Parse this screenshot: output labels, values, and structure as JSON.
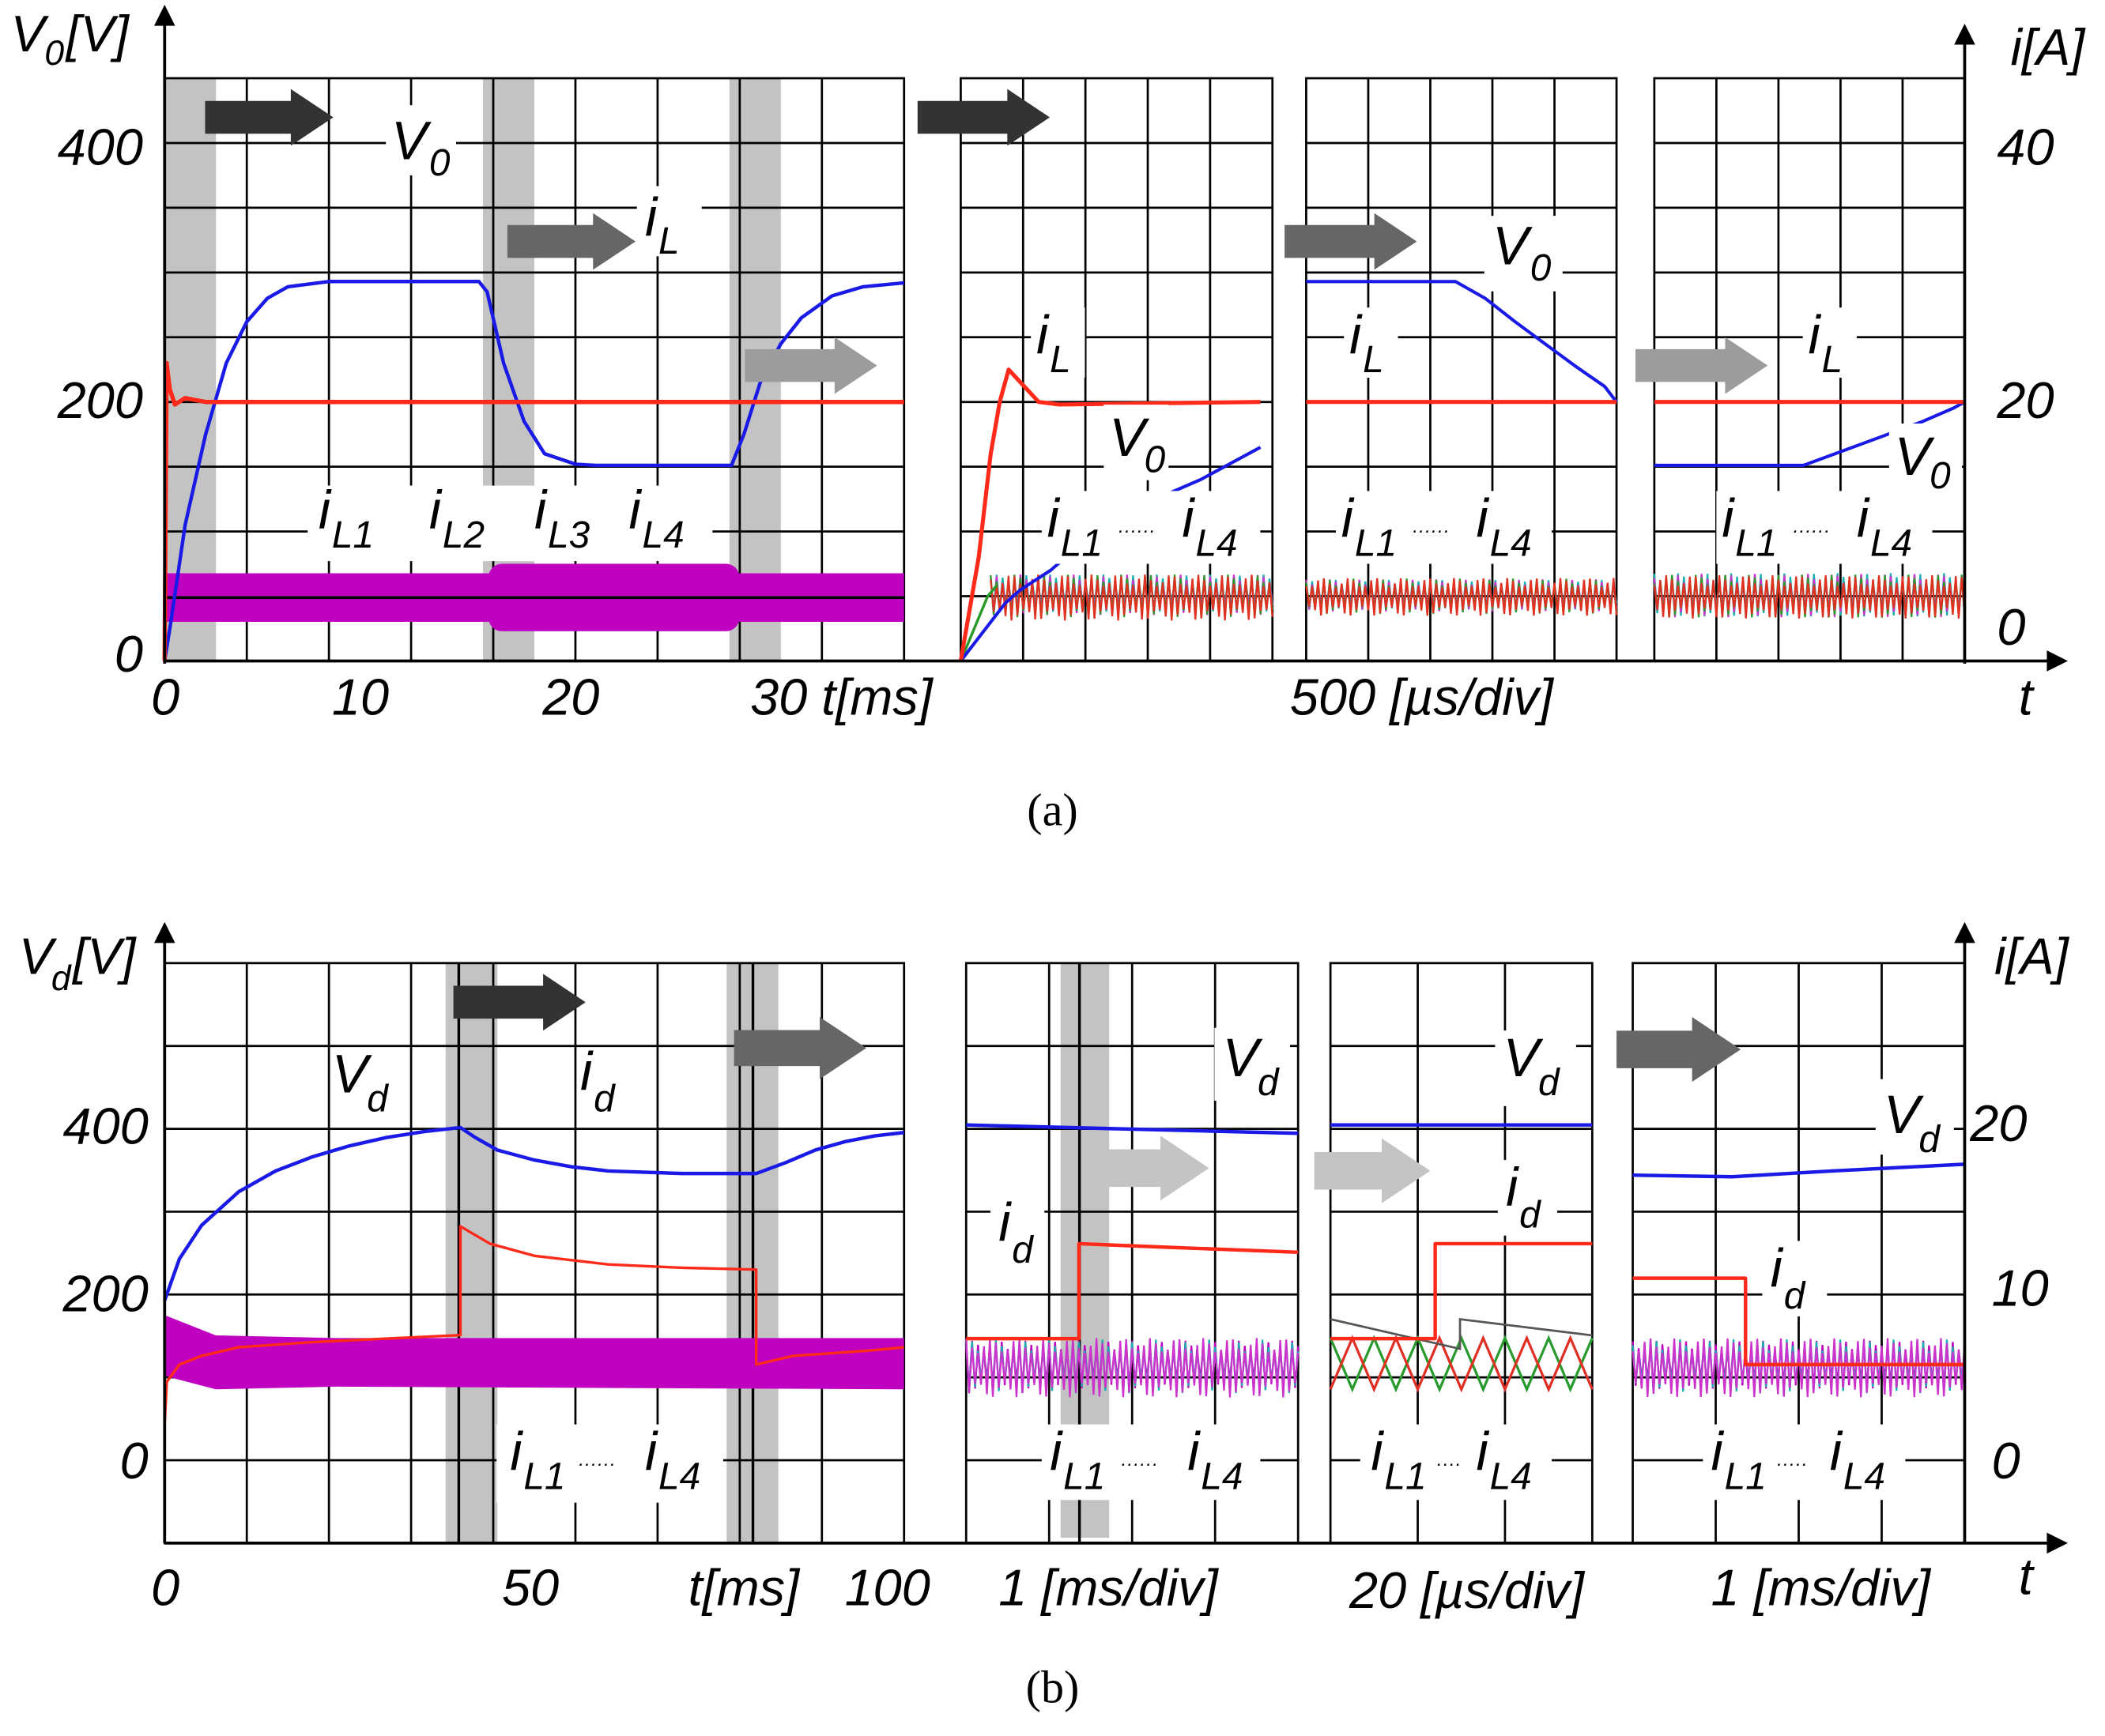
{
  "colors": {
    "voltage": "#1a1ae6",
    "current": "#ff2a1a",
    "phase": "#c000c0",
    "phase_a": "#19b0b0",
    "phase_b": "#cc33cc",
    "phase_c": "#2a9a2a",
    "phase_d": "#e03020",
    "envelope": "#555555",
    "grid": "#000000",
    "shade": "#c3c3c3",
    "arrow_dark": "#333333",
    "arrow_mid": "#666666",
    "arrow_light": "#9c9c9c",
    "arrow_pale": "#c4c4c4"
  },
  "chart_data": [
    {
      "id": "a",
      "type": "line",
      "caption": "(a)",
      "ylabel_left": "V0[V]",
      "ylabel_right": "i[A]",
      "yticks_left": [
        "0",
        "200",
        "400"
      ],
      "yticks_right": [
        "0",
        "20",
        "40"
      ],
      "ylim_left": [
        0,
        450
      ],
      "ylim_right": [
        0,
        45
      ],
      "xlabel": "t",
      "grid": true,
      "panels": [
        {
          "name": "overview",
          "xlim": [
            0,
            36
          ],
          "xticks": [
            "0",
            "10",
            "20",
            "30 t[ms]"
          ],
          "shaded_windows_ms": [
            [
              0,
              2.5
            ],
            [
              15.5,
              18
            ],
            [
              27.5,
              30
            ]
          ],
          "series": [
            {
              "name": "V0",
              "points": [
                [
                  0,
                  0
                ],
                [
                  0.3,
                  30
                ],
                [
                  1,
                  105
                ],
                [
                  2,
                  175
                ],
                [
                  3,
                  230
                ],
                [
                  4,
                  262
                ],
                [
                  5,
                  280
                ],
                [
                  6,
                  289
                ],
                [
                  8,
                  293
                ],
                [
                  15.3,
                  293
                ],
                [
                  15.7,
                  285
                ],
                [
                  16.5,
                  230
                ],
                [
                  17.5,
                  185
                ],
                [
                  18.5,
                  160
                ],
                [
                  20,
                  152
                ],
                [
                  21,
                  151
                ],
                [
                  27.6,
                  151
                ],
                [
                  28.2,
                  175
                ],
                [
                  29,
                  215
                ],
                [
                  30,
                  245
                ],
                [
                  31,
                  265
                ],
                [
                  32.5,
                  282
                ],
                [
                  34,
                  289
                ],
                [
                  36,
                  292
                ]
              ]
            },
            {
              "name": "iL",
              "points": [
                [
                  0,
                  0
                ],
                [
                  0.1,
                  23
                ],
                [
                  0.25,
                  21
                ],
                [
                  0.5,
                  19.8
                ],
                [
                  1,
                  20.3
                ],
                [
                  2,
                  20
                ],
                [
                  36,
                  20
                ]
              ]
            },
            {
              "name": "iL1-iL4",
              "points": [
                [
                  0,
                  0
                ],
                [
                  0.3,
                  5
                ],
                [
                  36,
                  5
                ]
              ]
            }
          ],
          "labels": [
            "V0",
            "iL",
            "iL1",
            "iL2",
            "iL3",
            "iL4"
          ]
        },
        {
          "name": "zoom-1",
          "time_scale": "500 [µs/div]",
          "series": [
            {
              "name": "iL",
              "points": [
                [
                  0,
                  0
                ],
                [
                  0.6,
                  8
                ],
                [
                  1,
                  16
                ],
                [
                  1.3,
                  20
                ],
                [
                  1.6,
                  22.5
                ],
                [
                  2,
                  21.5
                ],
                [
                  2.6,
                  20
                ],
                [
                  3.3,
                  19.8
                ],
                [
                  10,
                  20
                ]
              ]
            },
            {
              "name": "V0",
              "points": [
                [
                  0,
                  0
                ],
                [
                  1,
                  30
                ],
                [
                  1.5,
                  45
                ],
                [
                  2,
                  55
                ],
                [
                  3,
                  70
                ],
                [
                  4,
                  90
                ],
                [
                  6,
                  120
                ],
                [
                  8,
                  140
                ],
                [
                  10,
                  165
                ]
              ]
            },
            {
              "name": "iL1-iL4",
              "points": [
                [
                  0,
                  0
                ],
                [
                  1,
                  5
                ],
                [
                  2,
                  5.2
                ],
                [
                  10,
                  5.5
                ]
              ]
            }
          ],
          "labels": [
            "iL",
            "V0",
            "iL1",
            "iL4"
          ]
        },
        {
          "name": "zoom-2",
          "time_scale": "500 [µs/div]",
          "series": [
            {
              "name": "V0",
              "points": [
                [
                  0,
                  293
                ],
                [
                  5,
                  293
                ],
                [
                  6,
                  280
                ],
                [
                  7,
                  262
                ],
                [
                  8,
                  245
                ],
                [
                  9,
                  228
                ],
                [
                  10,
                  212
                ],
                [
                  10.4,
                  200
                ]
              ]
            },
            {
              "name": "iL",
              "points": [
                [
                  0,
                  20
                ],
                [
                  10.4,
                  20
                ]
              ]
            },
            {
              "name": "iL1-iL4",
              "points": [
                [
                  0,
                  5
                ],
                [
                  5,
                  5
                ],
                [
                  10.4,
                  5.5
                ]
              ]
            }
          ],
          "labels": [
            "V0",
            "iL",
            "iL1",
            "iL4"
          ]
        },
        {
          "name": "zoom-3",
          "time_scale": "500 [µs/div]",
          "series": [
            {
              "name": "V0",
              "points": [
                [
                  0,
                  151
                ],
                [
                  5,
                  151
                ],
                [
                  7,
                  168
                ],
                [
                  9,
                  185
                ],
                [
                  10,
                  195
                ],
                [
                  10.4,
                  200
                ]
              ]
            },
            {
              "name": "iL",
              "points": [
                [
                  0,
                  20
                ],
                [
                  10.4,
                  20
                ]
              ]
            },
            {
              "name": "iL1-iL4",
              "points": [
                [
                  0,
                  5
                ],
                [
                  10.4,
                  5
                ]
              ]
            }
          ],
          "labels": [
            "iL",
            "V0",
            "iL1",
            "iL4"
          ]
        }
      ],
      "time_scale_label": "500 [µs/div]"
    },
    {
      "id": "b",
      "type": "line",
      "caption": "(b)",
      "ylabel_left": "Vd[V]",
      "ylabel_right": "i[A]",
      "yticks_left": [
        "0",
        "200",
        "400"
      ],
      "yticks_right": [
        "0",
        "10",
        "20"
      ],
      "ylim_left": [
        -100,
        600
      ],
      "ylim_right": [
        -5,
        30
      ],
      "xlabel": "t",
      "grid": true,
      "panels": [
        {
          "name": "overview",
          "xlim": [
            0,
            100
          ],
          "xticks": [
            "0",
            "50",
            "t[ms]",
            "100"
          ],
          "shaded_windows_ms": [
            [
              38,
              45
            ],
            [
              76,
              83
            ]
          ],
          "series": [
            {
              "name": "Vd",
              "points": [
                [
                  0,
                  190
                ],
                [
                  2,
                  240
                ],
                [
                  5,
                  280
                ],
                [
                  10,
                  320
                ],
                [
                  15,
                  345
                ],
                [
                  20,
                  362
                ],
                [
                  25,
                  375
                ],
                [
                  30,
                  385
                ],
                [
                  35,
                  392
                ],
                [
                  40,
                  397
                ],
                [
                  42,
                  385
                ],
                [
                  45,
                  370
                ],
                [
                  50,
                  358
                ],
                [
                  55,
                  350
                ],
                [
                  60,
                  345
                ],
                [
                  70,
                  342
                ],
                [
                  80,
                  342
                ],
                [
                  84,
                  355
                ],
                [
                  88,
                  370
                ],
                [
                  92,
                  380
                ],
                [
                  96,
                  387
                ],
                [
                  100,
                  391
                ]
              ]
            },
            {
              "name": "id",
              "points": [
                [
                  0,
                  2
                ],
                [
                  0.3,
                  4.5
                ],
                [
                  2,
                  5.5
                ],
                [
                  5,
                  6
                ],
                [
                  10,
                  6.5
                ],
                [
                  20,
                  6.8
                ],
                [
                  30,
                  7
                ],
                [
                  40,
                  7.2
                ],
                [
                  40,
                  13.5
                ],
                [
                  44,
                  12.5
                ],
                [
                  50,
                  11.8
                ],
                [
                  60,
                  11.3
                ],
                [
                  70,
                  11.1
                ],
                [
                  80,
                  11
                ],
                [
                  80,
                  5.5
                ],
                [
                  85,
                  6
                ],
                [
                  95,
                  6.3
                ],
                [
                  100,
                  6.5
                ]
              ]
            },
            {
              "name": "iL1-iL4",
              "points": [
                [
                  0,
                  7
                ],
                [
                  100,
                  7
                ]
              ]
            }
          ],
          "labels": [
            "Vd",
            "id",
            "iL1",
            "iL4"
          ]
        },
        {
          "name": "zoom-1",
          "time_scale": "1 [ms/div]",
          "series": [
            {
              "name": "Vd",
              "points": [
                [
                  0,
                  400
                ],
                [
                  10,
                  390
                ]
              ]
            },
            {
              "name": "id",
              "points": [
                [
                  0,
                  7
                ],
                [
                  3.4,
                  7
                ],
                [
                  3.4,
                  12.5
                ],
                [
                  6,
                  12.3
                ],
                [
                  10,
                  12
                ]
              ]
            },
            {
              "name": "iL1-iL4",
              "points": [
                [
                  0,
                  6
                ],
                [
                  10,
                  6
                ]
              ]
            }
          ],
          "labels": [
            "Vd",
            "id",
            "iL1",
            "iL4"
          ]
        },
        {
          "name": "zoom-2",
          "time_scale": "20 [µs/div]",
          "series": [
            {
              "name": "Vd",
              "points": [
                [
                  0,
                  400
                ],
                [
                  10,
                  400
                ]
              ]
            },
            {
              "name": "id",
              "points": [
                [
                  0,
                  7
                ],
                [
                  4,
                  7
                ],
                [
                  4,
                  12.5
                ],
                [
                  10,
                  12.5
                ]
              ]
            },
            {
              "name": "iL1-iL4",
              "points": [
                [
                  0,
                  6
                ],
                [
                  10,
                  6
                ]
              ]
            }
          ],
          "labels": [
            "Vd",
            "id",
            "iL1",
            "iL4"
          ]
        },
        {
          "name": "zoom-3",
          "time_scale": "1 [ms/div]",
          "series": [
            {
              "name": "Vd",
              "points": [
                [
                  0,
                  340
                ],
                [
                  3,
                  338
                ],
                [
                  6,
                  345
                ],
                [
                  10,
                  353
                ]
              ]
            },
            {
              "name": "id",
              "points": [
                [
                  0,
                  10.5
                ],
                [
                  3.4,
                  10.5
                ],
                [
                  3.4,
                  5.5
                ],
                [
                  10,
                  5.5
                ]
              ]
            },
            {
              "name": "iL1-iL4",
              "points": [
                [
                  0,
                  6
                ],
                [
                  10,
                  6
                ]
              ]
            }
          ],
          "labels": [
            "Vd",
            "id",
            "iL1",
            "iL4"
          ]
        }
      ],
      "time_scale_labels": [
        "1 [ms/div]",
        "20 [µs/div]",
        "1 [ms/div]"
      ]
    }
  ]
}
